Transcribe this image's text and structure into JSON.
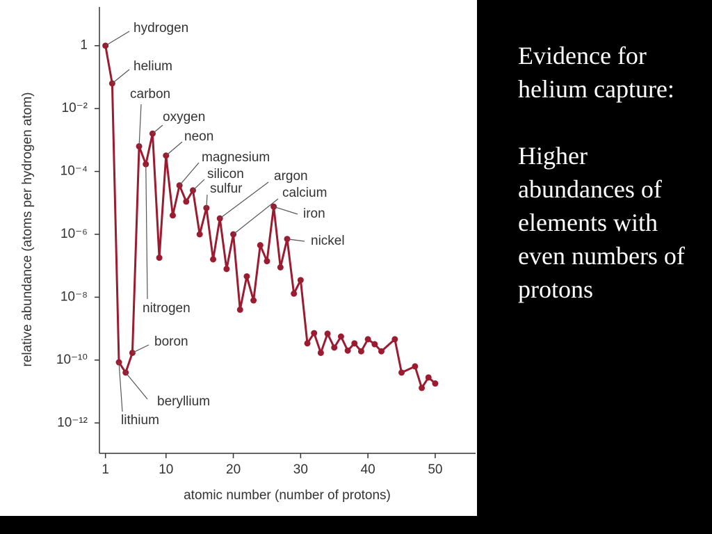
{
  "chart_data": {
    "type": "line",
    "log_scale_y": true,
    "xlabel": "atomic number (number of protons)",
    "ylabel": "relative abundance (atoms per hydrogen atom)",
    "color": "#9b1b30",
    "xlim": [
      0,
      56
    ],
    "xticks": [
      1,
      10,
      20,
      30,
      40,
      50
    ],
    "ylim": [
      1e-13,
      10
    ],
    "yticks": [
      1,
      {
        "value": 0.01,
        "label": "10⁻²"
      },
      {
        "value": 0.0001,
        "label": "10⁻⁴"
      },
      {
        "value": 1e-06,
        "label": "10⁻⁶"
      },
      {
        "value": 1e-08,
        "label": "10⁻⁸"
      },
      {
        "value": 1e-10,
        "label": "10⁻¹⁰"
      },
      {
        "value": 1e-12,
        "label": "10⁻¹²"
      }
    ],
    "x": [
      1,
      2,
      3,
      4,
      5,
      6,
      7,
      8,
      9,
      10,
      11,
      12,
      13,
      14,
      15,
      16,
      17,
      18,
      19,
      20,
      21,
      22,
      23,
      24,
      25,
      26,
      27,
      28,
      29,
      30,
      31,
      32,
      33,
      34,
      35,
      36,
      37,
      38,
      39,
      40,
      41,
      42,
      44,
      45,
      47,
      48,
      49,
      50
    ],
    "values": [
      1,
      0.063,
      8.5e-11,
      4e-11,
      1.7e-10,
      0.00063,
      0.00017,
      0.0016,
      1.8e-07,
      0.00032,
      4e-06,
      3.6e-05,
      1.1e-05,
      2.5e-05,
      1e-06,
      6.9e-06,
      1.6e-07,
      3.2e-06,
      7.9e-08,
      1e-06,
      4e-09,
      4.6e-08,
      7.9e-09,
      4.5e-07,
      1.4e-07,
      7.6e-06,
      8.9e-08,
      7.1e-07,
      1.3e-08,
      3.5e-08,
      3.4e-10,
      7.2e-10,
      1.7e-10,
      6.9e-10,
      2.5e-10,
      5.6e-10,
      2e-10,
      3.4e-10,
      1.9e-10,
      4.6e-10,
      3.2e-10,
      1.9e-10,
      4.6e-10,
      4e-11,
      6.3e-11,
      1.3e-11,
      2.8e-11,
      1.8e-11
    ],
    "annotations": [
      "hydrogen",
      "helium",
      "carbon",
      "oxygen",
      "neon",
      "magnesium",
      "silicon",
      "sulfur",
      "argon",
      "calcium",
      "iron",
      "nickel",
      "nitrogen",
      "boron",
      "beryllium",
      "lithium"
    ]
  },
  "slide_text": [
    "Evidence for helium capture:",
    "Higher abundances of elements with even numbers of protons"
  ]
}
